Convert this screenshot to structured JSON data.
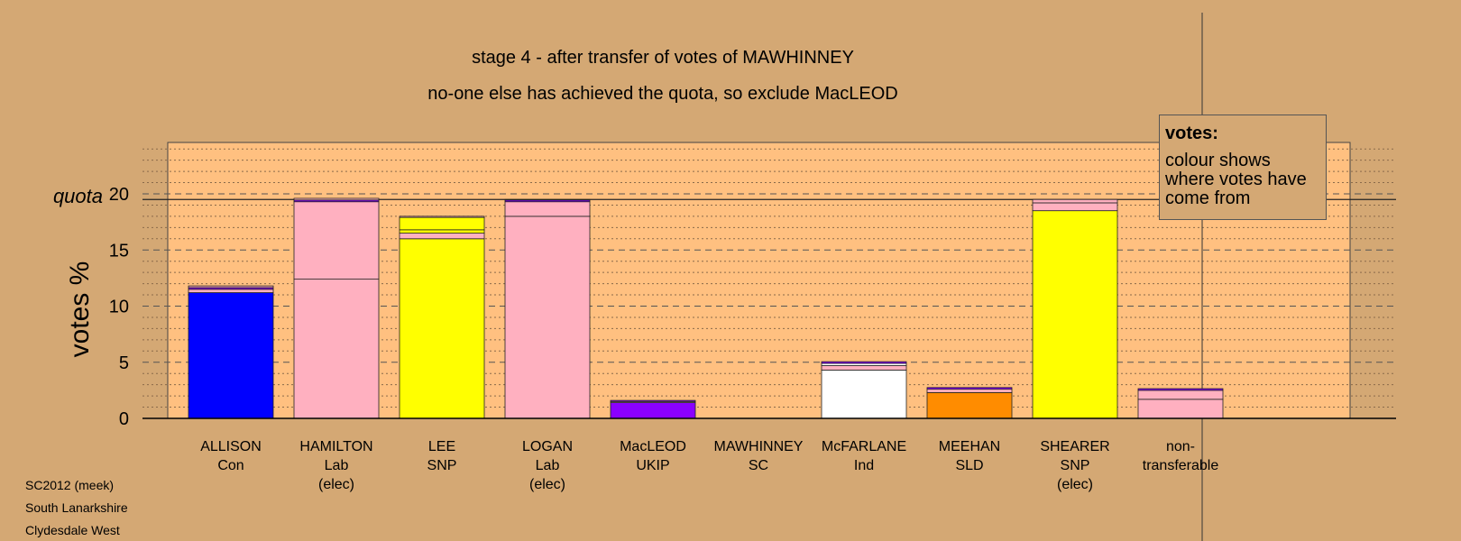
{
  "chart_data": {
    "type": "bar",
    "stacked": true,
    "title": "stage 4 - after transfer of votes of MAWHINNEY",
    "subtitle": "no-one else has achieved the quota, so exclude MacLEOD",
    "ylabel": "votes %",
    "quota_label": "quota",
    "quota": 19.5,
    "ylim": [
      0,
      24
    ],
    "yticks": [
      "0",
      "5",
      "10",
      "15",
      "20"
    ],
    "legend": {
      "title": "votes:",
      "text": "colour shows where votes have come from"
    },
    "categories": [
      {
        "name": "ALLISON",
        "party": "Con",
        "note": ""
      },
      {
        "name": "HAMILTON",
        "party": "Lab",
        "note": "(elec)"
      },
      {
        "name": "LEE",
        "party": "SNP",
        "note": ""
      },
      {
        "name": "LOGAN",
        "party": "Lab",
        "note": "(elec)"
      },
      {
        "name": "MacLEOD",
        "party": "UKIP",
        "note": ""
      },
      {
        "name": "MAWHINNEY",
        "party": "SC",
        "note": ""
      },
      {
        "name": "McFARLANE",
        "party": "Ind",
        "note": ""
      },
      {
        "name": "MEEHAN",
        "party": "SLD",
        "note": ""
      },
      {
        "name": "SHEARER",
        "party": "SNP",
        "note": "(elec)"
      },
      {
        "name": "non-",
        "party": "transferable",
        "note": ""
      }
    ],
    "segments": [
      [
        {
          "value": 11.2,
          "color": "#0000ff"
        },
        {
          "value": 0.3,
          "color": "#ffb0c0"
        },
        {
          "value": 0.15,
          "color": "#8b00ff"
        },
        {
          "value": 0.15,
          "color": "#ffb0c0"
        }
      ],
      [
        {
          "value": 12.4,
          "color": "#ffb0c0"
        },
        {
          "value": 6.9,
          "color": "#ffb0c0"
        },
        {
          "value": 0.15,
          "color": "#8b00ff"
        },
        {
          "value": 0.15,
          "color": "#ffb0c0"
        }
      ],
      [
        {
          "value": 16.0,
          "color": "#ffff00"
        },
        {
          "value": 0.5,
          "color": "#ffb0c0"
        },
        {
          "value": 0.3,
          "color": "#ffff00"
        },
        {
          "value": 1.1,
          "color": "#ffff00"
        },
        {
          "value": 0.1,
          "color": "#ffb0c0"
        }
      ],
      [
        {
          "value": 18.0,
          "color": "#ffb0c0"
        },
        {
          "value": 1.3,
          "color": "#ffb0c0"
        },
        {
          "value": 0.15,
          "color": "#8b00ff"
        },
        {
          "value": 0.05,
          "color": "#ffb0c0"
        }
      ],
      [
        {
          "value": 1.4,
          "color": "#8b00ff"
        },
        {
          "value": 0.1,
          "color": "#ffb0c0"
        },
        {
          "value": 0.1,
          "color": "#8b00ff"
        }
      ],
      [],
      [
        {
          "value": 4.3,
          "color": "#ffffff"
        },
        {
          "value": 0.4,
          "color": "#ffb0c0"
        },
        {
          "value": 0.2,
          "color": "#ffffff"
        },
        {
          "value": 0.15,
          "color": "#8b00ff"
        }
      ],
      [
        {
          "value": 2.3,
          "color": "#ff8c00"
        },
        {
          "value": 0.3,
          "color": "#ffb0c0"
        },
        {
          "value": 0.15,
          "color": "#8b00ff"
        }
      ],
      [
        {
          "value": 18.5,
          "color": "#ffff00"
        },
        {
          "value": 0.7,
          "color": "#ffb0c0"
        },
        {
          "value": 0.3,
          "color": "#ffb0c0"
        }
      ],
      [
        {
          "value": 1.7,
          "color": "#ffb0c0"
        },
        {
          "value": 0.8,
          "color": "#ffb0c0"
        },
        {
          "value": 0.15,
          "color": "#8b00ff"
        }
      ]
    ],
    "colors": {
      "background": "#d4a874",
      "plot_area": "#ffc080"
    }
  },
  "footer": {
    "line1": "SC2012 (meek)",
    "line2": "South Lanarkshire",
    "line3": "Clydesdale West"
  }
}
